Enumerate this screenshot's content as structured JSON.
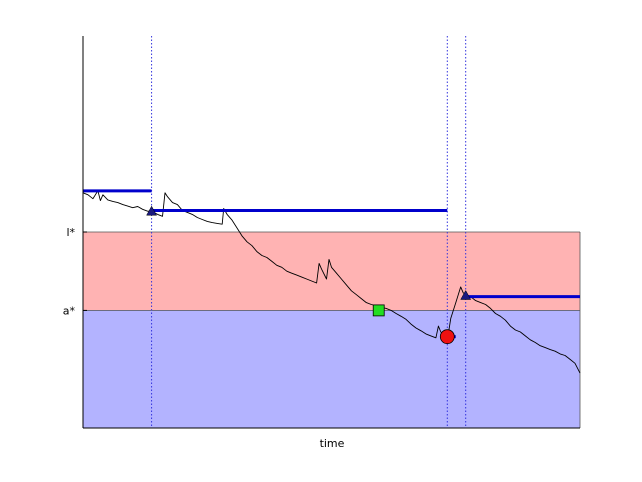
{
  "chart_data": {
    "type": "line",
    "title": "",
    "xlabel": "time",
    "ylabel": "",
    "xlim": [
      0,
      100
    ],
    "ylim": [
      0,
      100
    ],
    "grid": false,
    "y_ticks": [
      {
        "label": "l*",
        "value": 50
      },
      {
        "label": "a*",
        "value": 30
      }
    ],
    "bands": [
      {
        "name": "between-a-and-l",
        "from": 30,
        "to": 50,
        "color": "#ffb3b3"
      },
      {
        "name": "below-a",
        "from": 0,
        "to": 30,
        "color": "#b3b3ff"
      }
    ],
    "vlines": [
      13.8,
      73.3,
      77.0
    ],
    "path": {
      "color": "#000000",
      "x": [
        0,
        1,
        2,
        3,
        3.5,
        4,
        5,
        6,
        7,
        8,
        9,
        10,
        11,
        12,
        13,
        13.8,
        15,
        16,
        16.5,
        17,
        18,
        19,
        20,
        21,
        22,
        23,
        24,
        25,
        26,
        27,
        28,
        28.3,
        29,
        30,
        31,
        32,
        33,
        34,
        35,
        36,
        37,
        38,
        39,
        40,
        41,
        42,
        43,
        44,
        45,
        46,
        47,
        47.5,
        48,
        49,
        49.5,
        50,
        51,
        52,
        53,
        54,
        55,
        56,
        57,
        58,
        59,
        60,
        61,
        62,
        63,
        64,
        65,
        66,
        67,
        68,
        69,
        70,
        71,
        71.5,
        72,
        73,
        73.3,
        73.5,
        74,
        75,
        76,
        76.5,
        77,
        78,
        79,
        80,
        81,
        82,
        83,
        84,
        85,
        86,
        87,
        88,
        89,
        90,
        91,
        92,
        93,
        94,
        95,
        96,
        97,
        98,
        99,
        100
      ],
      "y": [
        60,
        59.5,
        58.5,
        60.5,
        58,
        59.5,
        58.2,
        57.8,
        57.5,
        57,
        56.6,
        56.2,
        56.5,
        55.8,
        55.3,
        55.3,
        54.5,
        54,
        60,
        59,
        57.5,
        57,
        55.5,
        55,
        54.5,
        53.7,
        53.2,
        52.7,
        52.4,
        52.2,
        52,
        56,
        54.5,
        53,
        51,
        49,
        47.5,
        46.5,
        45,
        44,
        43.5,
        42.5,
        41.5,
        41,
        40,
        39.5,
        39,
        38.5,
        38,
        37.5,
        37,
        42,
        40.5,
        38,
        43,
        41,
        39.5,
        38,
        36.5,
        35,
        34,
        33,
        32,
        31.5,
        31.2,
        30.8,
        30.5,
        30,
        29.2,
        28.5,
        27.7,
        26.5,
        25.5,
        24.8,
        24,
        23.5,
        23,
        26,
        24.5,
        23.5,
        23,
        24,
        28,
        32,
        36,
        34.5,
        34,
        33.5,
        32.5,
        32,
        31.5,
        30.5,
        29.2,
        28.5,
        27.5,
        26,
        25,
        24.5,
        23.5,
        22.5,
        21.8,
        21,
        20.5,
        20,
        19.6,
        18.9,
        18.5,
        17.5,
        16.5,
        14
      ]
    },
    "levels": [
      {
        "x0": 0,
        "x1": 13.8,
        "y": 60.5
      },
      {
        "x0": 13.8,
        "x1": 73.3,
        "y": 55.5
      },
      {
        "x0": 73.3,
        "x1": 75.0,
        "y": 23.3
      },
      {
        "x0": 77.0,
        "x1": 100,
        "y": 33.5
      }
    ],
    "level_color": "#0000cc",
    "markers": [
      {
        "shape": "triangle",
        "x": 13.8,
        "y": 55.3,
        "color": "#1a1a80"
      },
      {
        "shape": "triangle",
        "x": 77.0,
        "y": 33.8,
        "color": "#1a1a80"
      },
      {
        "shape": "square",
        "x": 59.5,
        "y": 30.0,
        "color": "#22dd22"
      },
      {
        "shape": "circle",
        "x": 73.3,
        "y": 23.3,
        "color": "#ee1111"
      }
    ]
  }
}
